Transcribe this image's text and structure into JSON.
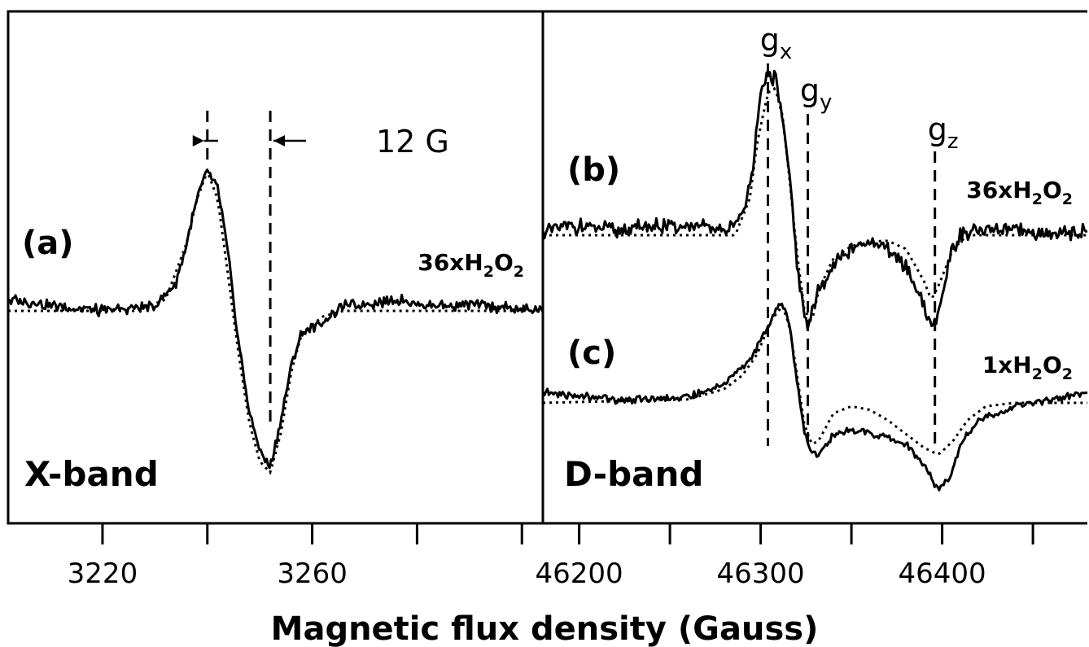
{
  "chart_data": {
    "type": "line",
    "xlabel": "Magnetic flux density (Gauss)",
    "panels": [
      {
        "id": "x-band",
        "band_label": "X-band",
        "xlim": [
          3202,
          3304
        ],
        "xticks": [
          3220,
          3260
        ],
        "minor_ticks": [
          3200,
          3240,
          3280,
          3300
        ],
        "annotation": "12 G",
        "markers": [
          3240,
          3252
        ],
        "spectra": [
          {
            "label": "(a)",
            "sample": "36xH",
            "sub1": "2",
            "mid": "O",
            "sub2": "2",
            "baseline": 0,
            "experimental": [
              [
                3202,
                0.1
              ],
              [
                3210,
                0.05
              ],
              [
                3220,
                0
              ],
              [
                3230,
                0.05
              ],
              [
                3234,
                0.25
              ],
              [
                3236,
                0.6
              ],
              [
                3238,
                1.0
              ],
              [
                3240,
                1.25
              ],
              [
                3242,
                1.1
              ],
              [
                3244,
                0.5
              ],
              [
                3246,
                -0.3
              ],
              [
                3248,
                -0.9
              ],
              [
                3250,
                -1.25
              ],
              [
                3252,
                -1.4
              ],
              [
                3254,
                -1.0
              ],
              [
                3256,
                -0.5
              ],
              [
                3258,
                -0.2
              ],
              [
                3262,
                -0.1
              ],
              [
                3266,
                0.05
              ],
              [
                3270,
                0.05
              ],
              [
                3276,
                0.1
              ],
              [
                3282,
                0.05
              ],
              [
                3290,
                0.05
              ],
              [
                3304,
                0.0
              ]
            ],
            "fit": [
              [
                3202,
                0
              ],
              [
                3226,
                0
              ],
              [
                3232,
                0.1
              ],
              [
                3236,
                0.6
              ],
              [
                3238,
                1.0
              ],
              [
                3240,
                1.25
              ],
              [
                3242,
                1.0
              ],
              [
                3244,
                0.3
              ],
              [
                3246,
                -0.4
              ],
              [
                3248,
                -1.0
              ],
              [
                3250,
                -1.35
              ],
              [
                3252,
                -1.45
              ],
              [
                3254,
                -1.1
              ],
              [
                3256,
                -0.55
              ],
              [
                3258,
                -0.2
              ],
              [
                3262,
                -0.05
              ],
              [
                3266,
                0
              ],
              [
                3304,
                0
              ]
            ]
          }
        ]
      },
      {
        "id": "d-band",
        "band_label": "D-band",
        "xlim": [
          46180,
          46480
        ],
        "xticks": [
          46200,
          46300,
          46400
        ],
        "minor_ticks": [
          46250,
          46350,
          46450
        ],
        "markers": [
          {
            "label": "g",
            "sub": "x",
            "value": 46304
          },
          {
            "label": "g",
            "sub": "y",
            "value": 46326
          },
          {
            "label": "g",
            "sub": "z",
            "value": 46396
          }
        ],
        "spectra": [
          {
            "label": "(b)",
            "sample": "36xH",
            "sub1": "2",
            "mid": "O",
            "sub2": "2",
            "experimental": [
              [
                46180,
                0.05
              ],
              [
                46200,
                0.1
              ],
              [
                46220,
                0.05
              ],
              [
                46240,
                0.1
              ],
              [
                46260,
                0.1
              ],
              [
                46280,
                0.05
              ],
              [
                46290,
                0.2
              ],
              [
                46296,
                0.8
              ],
              [
                46300,
                1.5
              ],
              [
                46304,
                1.75
              ],
              [
                46308,
                1.7
              ],
              [
                46312,
                1.3
              ],
              [
                46316,
                0.6
              ],
              [
                46320,
                -0.3
              ],
              [
                46324,
                -0.85
              ],
              [
                46326,
                -1.0
              ],
              [
                46330,
                -0.7
              ],
              [
                46340,
                -0.3
              ],
              [
                46350,
                -0.15
              ],
              [
                46360,
                -0.1
              ],
              [
                46370,
                -0.15
              ],
              [
                46380,
                -0.35
              ],
              [
                46390,
                -0.75
              ],
              [
                46394,
                -1.0
              ],
              [
                46398,
                -0.85
              ],
              [
                46404,
                -0.25
              ],
              [
                46410,
                0
              ],
              [
                46420,
                0.05
              ],
              [
                46440,
                0.05
              ],
              [
                46460,
                0.0
              ],
              [
                46480,
                0.05
              ]
            ],
            "fit": [
              [
                46180,
                0
              ],
              [
                46286,
                0
              ],
              [
                46294,
                0.4
              ],
              [
                46298,
                1.0
              ],
              [
                46304,
                1.55
              ],
              [
                46308,
                1.6
              ],
              [
                46312,
                1.3
              ],
              [
                46316,
                0.6
              ],
              [
                46320,
                -0.2
              ],
              [
                46324,
                -0.8
              ],
              [
                46328,
                -0.95
              ],
              [
                46332,
                -0.6
              ],
              [
                46340,
                -0.25
              ],
              [
                46350,
                -0.12
              ],
              [
                46360,
                -0.07
              ],
              [
                46370,
                -0.06
              ],
              [
                46380,
                -0.15
              ],
              [
                46390,
                -0.5
              ],
              [
                46394,
                -0.7
              ],
              [
                46398,
                -0.55
              ],
              [
                46406,
                -0.15
              ],
              [
                46414,
                0
              ],
              [
                46480,
                0
              ]
            ]
          },
          {
            "label": "(c)",
            "sample": "1xH",
            "sub1": "2",
            "mid": "O",
            "sub2": "2",
            "experimental": [
              [
                46180,
                0.15
              ],
              [
                46200,
                0.1
              ],
              [
                46220,
                0.05
              ],
              [
                46240,
                0.05
              ],
              [
                46260,
                0.1
              ],
              [
                46270,
                0.15
              ],
              [
                46280,
                0.3
              ],
              [
                46290,
                0.5
              ],
              [
                46296,
                0.7
              ],
              [
                46302,
                1.0
              ],
              [
                46308,
                1.35
              ],
              [
                46312,
                1.45
              ],
              [
                46316,
                1.1
              ],
              [
                46320,
                0.3
              ],
              [
                46324,
                -0.4
              ],
              [
                46328,
                -0.75
              ],
              [
                46332,
                -0.75
              ],
              [
                46340,
                -0.45
              ],
              [
                46350,
                -0.4
              ],
              [
                46360,
                -0.45
              ],
              [
                46370,
                -0.5
              ],
              [
                46380,
                -0.6
              ],
              [
                46390,
                -0.9
              ],
              [
                46398,
                -1.25
              ],
              [
                46404,
                -1.1
              ],
              [
                46410,
                -0.6
              ],
              [
                46420,
                -0.25
              ],
              [
                46440,
                -0.05
              ],
              [
                46460,
                0.05
              ],
              [
                46480,
                0.15
              ]
            ],
            "fit": [
              [
                46180,
                0
              ],
              [
                46260,
                0.05
              ],
              [
                46280,
                0.2
              ],
              [
                46290,
                0.4
              ],
              [
                46298,
                0.7
              ],
              [
                46306,
                1.2
              ],
              [
                46312,
                1.4
              ],
              [
                46316,
                1.1
              ],
              [
                46320,
                0.4
              ],
              [
                46324,
                -0.3
              ],
              [
                46328,
                -0.6
              ],
              [
                46332,
                -0.55
              ],
              [
                46340,
                -0.15
              ],
              [
                46350,
                -0.05
              ],
              [
                46360,
                -0.1
              ],
              [
                46370,
                -0.25
              ],
              [
                46380,
                -0.45
              ],
              [
                46390,
                -0.65
              ],
              [
                46398,
                -0.75
              ],
              [
                46406,
                -0.55
              ],
              [
                46414,
                -0.25
              ],
              [
                46424,
                -0.05
              ],
              [
                46440,
                0
              ],
              [
                46480,
                0
              ]
            ]
          }
        ]
      }
    ]
  }
}
